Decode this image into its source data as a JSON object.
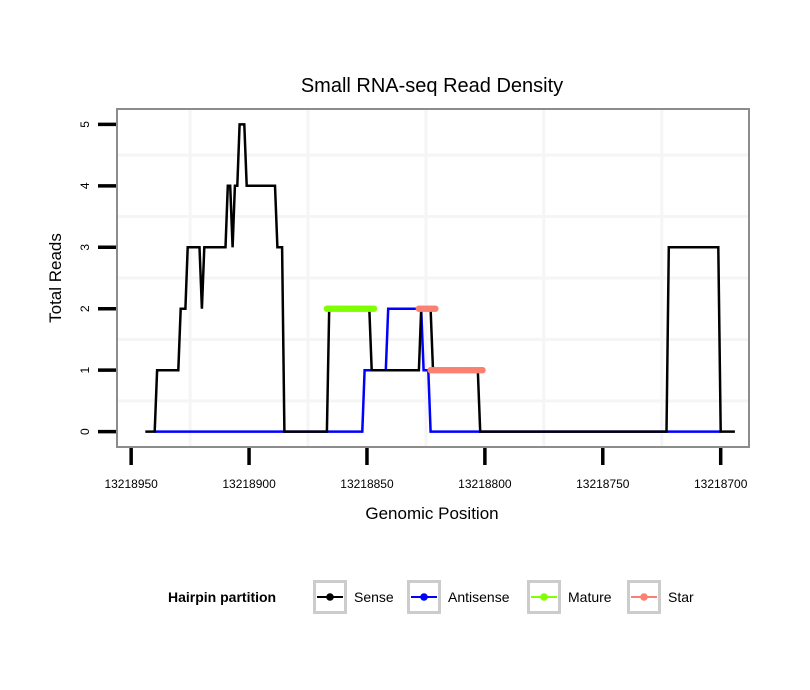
{
  "chart_data": {
    "type": "line",
    "title": "Small RNA-seq Read Density",
    "xlabel": "Genomic Position",
    "ylabel": "Total Reads",
    "x_reversed": true,
    "xlim": [
      13218956,
      13218688
    ],
    "ylim": [
      -0.25,
      5.25
    ],
    "x_ticks": [
      13218950,
      13218900,
      13218850,
      13218800,
      13218750,
      13218700
    ],
    "x_tick_labels": [
      "13218950",
      "13218900",
      "13218850",
      "13218800",
      "13218750",
      "13218700"
    ],
    "y_ticks": [
      0,
      1,
      2,
      3,
      4,
      5
    ],
    "y_tick_labels": [
      "0",
      "1",
      "2",
      "3",
      "4",
      "5"
    ],
    "grid": true,
    "legend": {
      "title": "Hairpin partition",
      "placement": "bottom",
      "entries": [
        "Sense",
        "Antisense",
        "Mature",
        "Star"
      ]
    },
    "series": [
      {
        "name": "Sense",
        "color": "#000000",
        "style": "line",
        "points": [
          [
            13218944,
            0
          ],
          [
            13218940,
            0
          ],
          [
            13218939,
            1
          ],
          [
            13218930,
            1
          ],
          [
            13218929,
            2
          ],
          [
            13218927,
            2
          ],
          [
            13218926,
            3
          ],
          [
            13218921,
            3
          ],
          [
            13218920,
            2
          ],
          [
            13218919,
            3
          ],
          [
            13218910,
            3
          ],
          [
            13218909,
            4
          ],
          [
            13218908,
            4
          ],
          [
            13218907,
            3
          ],
          [
            13218906,
            4
          ],
          [
            13218905,
            4
          ],
          [
            13218904,
            5
          ],
          [
            13218902,
            5
          ],
          [
            13218901,
            4
          ],
          [
            13218889,
            4
          ],
          [
            13218888,
            3
          ],
          [
            13218886,
            3
          ],
          [
            13218885,
            0
          ],
          [
            13218867,
            0
          ],
          [
            13218866,
            2
          ],
          [
            13218849,
            2
          ],
          [
            13218848,
            1
          ],
          [
            13218828,
            1
          ],
          [
            13218827,
            2
          ],
          [
            13218823,
            2
          ],
          [
            13218822,
            1
          ],
          [
            13218803,
            1
          ],
          [
            13218802,
            0
          ],
          [
            13218723,
            0
          ],
          [
            13218722,
            3
          ],
          [
            13218701,
            3
          ],
          [
            13218700,
            0
          ],
          [
            13218694,
            0
          ]
        ]
      },
      {
        "name": "Antisense",
        "color": "#0000ff",
        "style": "line",
        "points": [
          [
            13218940,
            0
          ],
          [
            13218852,
            0
          ],
          [
            13218851,
            1
          ],
          [
            13218842,
            1
          ],
          [
            13218841,
            2
          ],
          [
            13218827,
            2
          ],
          [
            13218826,
            1
          ],
          [
            13218824,
            1
          ],
          [
            13218823,
            0
          ],
          [
            13218700,
            0
          ]
        ]
      },
      {
        "name": "Mature",
        "color": "#7fff00",
        "style": "points",
        "segments": [
          {
            "from": 13218867,
            "to": 13218847,
            "value": 2
          }
        ]
      },
      {
        "name": "Star",
        "color": "#fa8072",
        "style": "points",
        "segments": [
          {
            "from": 13218828,
            "to": 13218821,
            "value": 2
          },
          {
            "from": 13218823,
            "to": 13218801,
            "value": 1
          }
        ]
      }
    ]
  }
}
